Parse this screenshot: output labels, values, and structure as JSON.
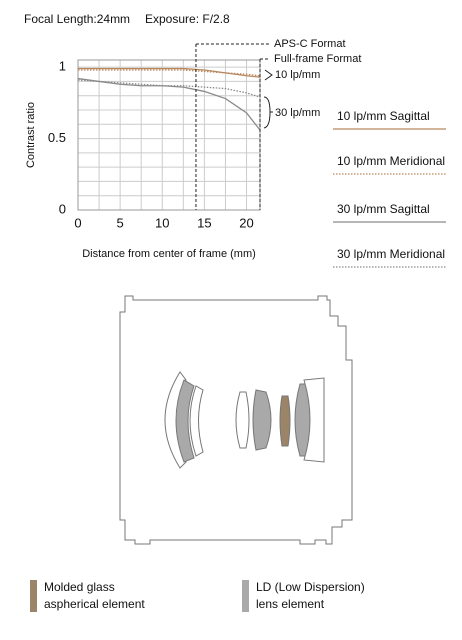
{
  "chart_data": {
    "type": "line",
    "header": [
      "Focal Length:24mm",
      "Exposure: F/2.8"
    ],
    "xlabel": "Distance from center of frame (mm)",
    "ylabel": "Contrast ratio",
    "x": [
      0,
      2.5,
      5,
      7.5,
      10,
      12.5,
      15,
      17.5,
      20,
      21.6
    ],
    "series": [
      {
        "name": "10 lp/mm Sagittal",
        "color": "#b8875e",
        "style": "solid",
        "values": [
          0.99,
          0.99,
          0.99,
          0.99,
          0.99,
          0.99,
          0.98,
          0.96,
          0.94,
          0.93
        ]
      },
      {
        "name": "10 lp/mm Meridional",
        "color": "#b8875e",
        "style": "dotted",
        "values": [
          0.98,
          0.98,
          0.98,
          0.98,
          0.98,
          0.98,
          0.97,
          0.96,
          0.95,
          0.94
        ]
      },
      {
        "name": "30 lp/mm Sagittal",
        "color": "#8a8a8a",
        "style": "solid",
        "values": [
          0.92,
          0.9,
          0.88,
          0.87,
          0.87,
          0.86,
          0.83,
          0.78,
          0.68,
          0.56
        ]
      },
      {
        "name": "30 lp/mm Meridional",
        "color": "#8a8a8a",
        "style": "dotted",
        "values": [
          0.91,
          0.9,
          0.89,
          0.88,
          0.87,
          0.87,
          0.86,
          0.85,
          0.82,
          0.79
        ]
      }
    ],
    "xlim": [
      0,
      21.6
    ],
    "ylim": [
      0,
      1.05
    ],
    "xticks": [
      0,
      5,
      10,
      15,
      20
    ],
    "yticks": [
      0,
      0.5,
      1
    ],
    "xminorticks": [
      2.5,
      7.5,
      12.5,
      17.5
    ],
    "yminorticks": [
      0.1,
      0.2,
      0.3,
      0.4,
      0.6,
      0.7,
      0.8,
      0.9
    ],
    "grid": true,
    "annotations": [
      {
        "text": "APS-C Format",
        "x": 14
      },
      {
        "text": "Full-frame Format",
        "x": 21.6
      }
    ],
    "group_labels": [
      "10 lp/mm",
      "30 lp/mm"
    ]
  },
  "lens_legend": [
    {
      "lines": [
        "Molded glass",
        "aspherical element"
      ],
      "color": "#9c8468"
    },
    {
      "lines": [
        "LD (Low Dispersion)",
        "lens element"
      ],
      "color": "#a9a9a9"
    }
  ]
}
